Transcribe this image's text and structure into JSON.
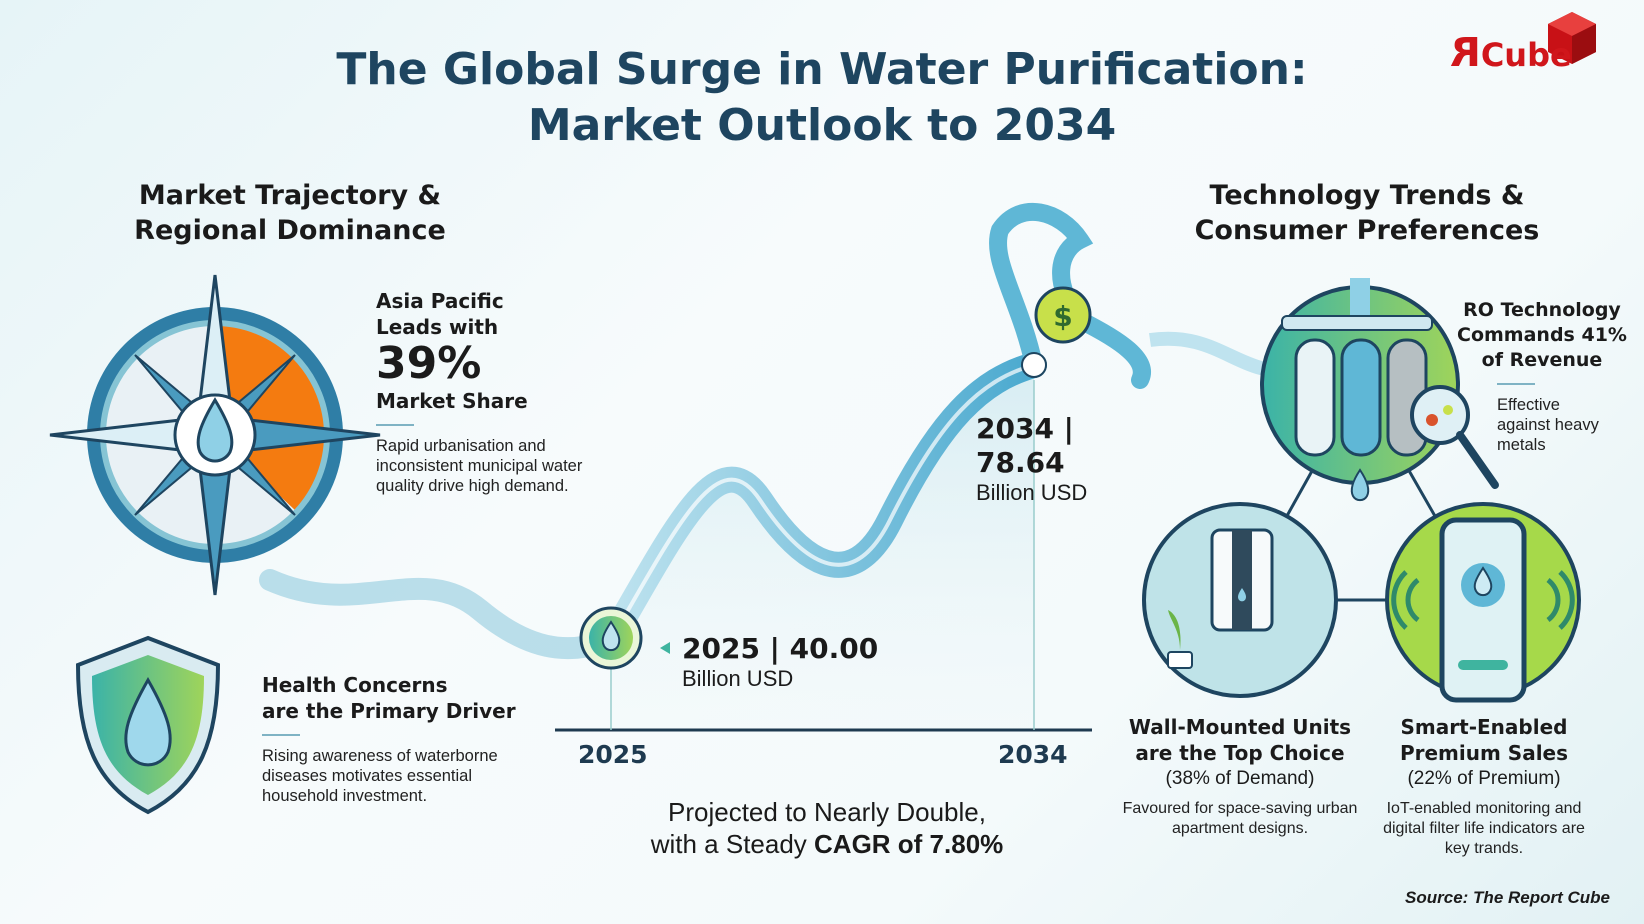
{
  "title": {
    "line1": "The Global Surge in Water Purification:",
    "line2": "Market Outlook to 2034"
  },
  "logo": {
    "text_r": "R",
    "text_cube": "Cube",
    "color": "#d0161b"
  },
  "left": {
    "heading_line1": "Market Trajectory &",
    "heading_line2": "Regional Dominance",
    "asia": {
      "line1": "Asia Pacific",
      "line2": "Leads with",
      "value": "39%",
      "line3": "Market Share",
      "body": "Rapid urbanisation and inconsistent municipal water quality drive high demand.",
      "share": 39
    },
    "health": {
      "line1": "Health Concerns",
      "line2": "are the Primary Driver",
      "body": "Rising awareness of waterborne diseases motivates essential household investment."
    }
  },
  "growth": {
    "start": {
      "year": "2025",
      "label": "2025 | 40.00",
      "unit": "Billion USD",
      "value": 40.0
    },
    "end": {
      "year": "2034",
      "label_line1": "2034 |",
      "label_line2": "78.64",
      "unit": "Billion USD",
      "value": 78.64
    },
    "caption_line1": "Projected to Nearly Double,",
    "caption_line2_prefix": "with a Steady ",
    "caption_line2_bold": "CAGR of 7.80%"
  },
  "right": {
    "heading_line1": "Technology Trends &",
    "heading_line2": "Consumer Preferences",
    "ro": {
      "line1": "RO Technology",
      "line2": "Commands 41%",
      "line3": "of Revenue",
      "body": "Effective against heavy metals"
    },
    "wall": {
      "line1": "Wall-Mounted Units",
      "line2": "are the Top Choice",
      "line3": "(38% of Demand)",
      "body": "Favoured for space-saving urban apartment designs."
    },
    "smart": {
      "line1": "Smart-Enabled",
      "line2": "Premium Sales",
      "line3": "(22% of Premium)",
      "body": "IoT-enabled monitoring and digital filter life indicators are key trands."
    }
  },
  "source": "Source: The Report Cube",
  "colors": {
    "title": "#1e4560",
    "orange": "#f47b10",
    "water": "#5fb7d6",
    "green": "#8cc63f",
    "teal": "#2b6f86"
  }
}
